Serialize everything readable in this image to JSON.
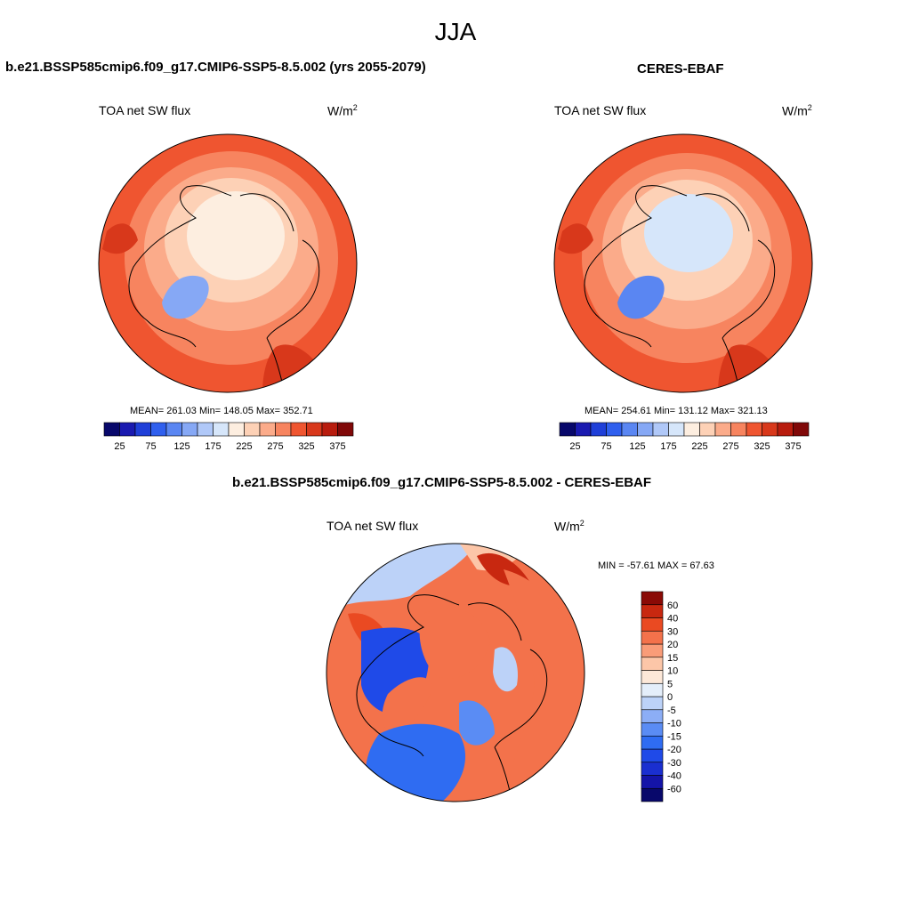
{
  "title": "JJA",
  "panels": [
    {
      "title": "b.e21.BSSP585cmip6.f09_g17.CMIP6-SSP5-8.5.002 (yrs 2055-2079)",
      "variable": "TOA net SW flux",
      "units": "W/m",
      "units_sup": "2",
      "stats": "MEAN= 261.03  Min= 148.05  Max= 352.71"
    },
    {
      "title": "CERES-EBAF",
      "variable": "TOA net SW flux",
      "units": "W/m",
      "units_sup": "2",
      "stats": "MEAN= 254.61  Min= 131.12  Max= 321.13"
    },
    {
      "title": "b.e21.BSSP585cmip6.f09_g17.CMIP6-SSP5-8.5.002 - CERES-EBAF",
      "variable": "TOA net SW flux",
      "units": "W/m",
      "units_sup": "2",
      "stats": "MIN = -57.61 MAX =  67.63"
    }
  ],
  "chart_data": [
    {
      "type": "heatmap",
      "title": "b.e21.BSSP585cmip6.f09_g17.CMIP6-SSP5-8.5.002 (yrs 2055-2079)",
      "projection": "north polar stereographic",
      "variable": "TOA net SW flux",
      "units": "W/m2",
      "mean": 261.03,
      "min": 148.05,
      "max": 352.71,
      "colorbar": {
        "orientation": "horizontal",
        "levels": [
          25,
          50,
          75,
          100,
          125,
          150,
          175,
          200,
          225,
          250,
          275,
          300,
          325,
          350,
          375
        ],
        "tick_labels": [
          "25",
          "75",
          "125",
          "175",
          "225",
          "275",
          "325",
          "375"
        ],
        "colors": [
          "#08086b",
          "#1a1ab0",
          "#1f3fd8",
          "#2f5fee",
          "#5a86f2",
          "#86a8f5",
          "#b0c8f8",
          "#d6e6fa",
          "#fdeee0",
          "#fdd1b6",
          "#fbab8a",
          "#f7845f",
          "#ef5530",
          "#d8381b",
          "#b81c0e",
          "#800808"
        ]
      }
    },
    {
      "type": "heatmap",
      "title": "CERES-EBAF",
      "projection": "north polar stereographic",
      "variable": "TOA net SW flux",
      "units": "W/m2",
      "mean": 254.61,
      "min": 131.12,
      "max": 321.13,
      "colorbar": {
        "orientation": "horizontal",
        "levels": [
          25,
          50,
          75,
          100,
          125,
          150,
          175,
          200,
          225,
          250,
          275,
          300,
          325,
          350,
          375
        ],
        "tick_labels": [
          "25",
          "75",
          "125",
          "175",
          "225",
          "275",
          "325",
          "375"
        ],
        "colors": [
          "#08086b",
          "#1a1ab0",
          "#1f3fd8",
          "#2f5fee",
          "#5a86f2",
          "#86a8f5",
          "#b0c8f8",
          "#d6e6fa",
          "#fdeee0",
          "#fdd1b6",
          "#fbab8a",
          "#f7845f",
          "#ef5530",
          "#d8381b",
          "#b81c0e",
          "#800808"
        ]
      }
    },
    {
      "type": "heatmap",
      "title": "b.e21.BSSP585cmip6.f09_g17.CMIP6-SSP5-8.5.002 - CERES-EBAF",
      "projection": "north polar stereographic",
      "variable": "TOA net SW flux",
      "units": "W/m2",
      "min": -57.61,
      "max": 67.63,
      "colorbar": {
        "orientation": "vertical",
        "levels": [
          -60,
          -40,
          -30,
          -20,
          -15,
          -10,
          -5,
          0,
          5,
          10,
          15,
          20,
          30,
          40,
          60
        ],
        "tick_labels": [
          "-60",
          "-40",
          "-30",
          "-20",
          "-15",
          "-10",
          "-5",
          "0",
          "5",
          "10",
          "15",
          "20",
          "30",
          "40",
          "60"
        ],
        "colors": [
          "#08086b",
          "#1414a8",
          "#1a2fd0",
          "#1f4ae8",
          "#2f6cf2",
          "#5a8cf4",
          "#8caef6",
          "#bcd2f8",
          "#e4eefa",
          "#fde8d8",
          "#fcc6a8",
          "#f99c78",
          "#f3724b",
          "#ea4a22",
          "#c82810",
          "#8a0a06"
        ]
      }
    }
  ]
}
